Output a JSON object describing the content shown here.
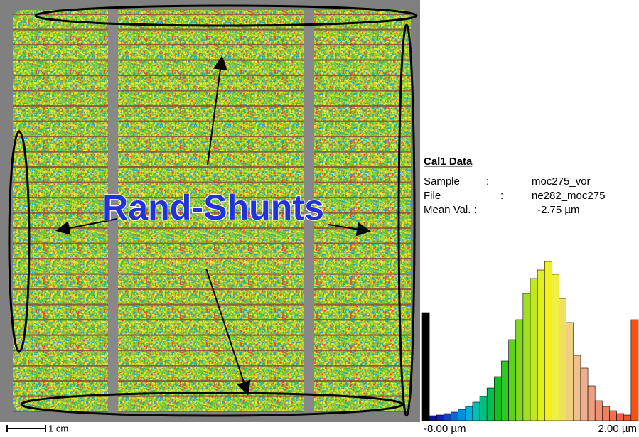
{
  "image": {
    "annotation": "Rand-Shunts",
    "scale_label": "1 cm"
  },
  "info": {
    "title": "Cal1 Data",
    "rows": [
      [
        "Sample",
        ":",
        "moc275_vor"
      ],
      [
        "File",
        ":",
        "ne282_moc275"
      ],
      [
        "Mean Val. :",
        "-2.75  µm"
      ]
    ]
  },
  "chart_data": {
    "type": "bar",
    "values": [
      152,
      7,
      8,
      10,
      12,
      16,
      20,
      26,
      34,
      46,
      62,
      84,
      114,
      142,
      179,
      200,
      212,
      224,
      206,
      172,
      138,
      92,
      74,
      49,
      28,
      20,
      14,
      10,
      8,
      142
    ],
    "colors": [
      "#000000",
      "#101090",
      "#1020b0",
      "#1040c8",
      "#1068d8",
      "#0090e0",
      "#00b0d8",
      "#00c0b0",
      "#00c080",
      "#00c050",
      "#10c020",
      "#30c820",
      "#60d020",
      "#80d820",
      "#a0e020",
      "#c0e820",
      "#e0f020",
      "#f0f020",
      "#f0f040",
      "#f0e060",
      "#f0d080",
      "#f0c090",
      "#f0b090",
      "#f0a080",
      "#f09070",
      "#f08060",
      "#f07050",
      "#f06040",
      "#f05030",
      "#ff5010"
    ],
    "xlim": [
      -8,
      2
    ],
    "xticks": [
      {
        "value": -8,
        "label": "-8.00 µm"
      },
      {
        "value": 2,
        "label": "2.00 µm"
      }
    ]
  }
}
